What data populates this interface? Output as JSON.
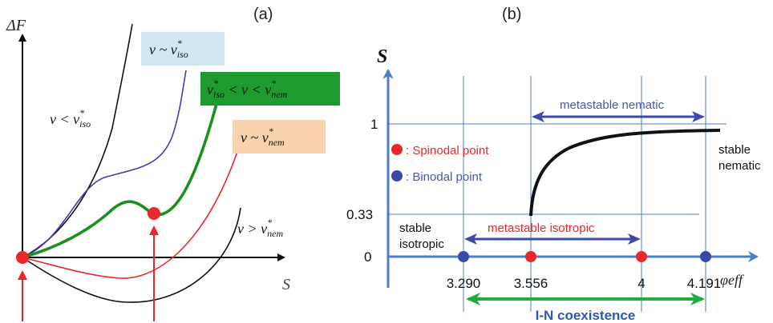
{
  "panel_a": {
    "label": "(a)",
    "y_axis_label": "ΔF",
    "x_axis_label": "S",
    "legend": {
      "v_lt_iso": "v < v*iso",
      "v_sim_iso": "v ~ v*iso",
      "v_between": "v*iso < v < v*nem",
      "v_sim_nem": "v ~ v*nem",
      "v_gt_nem": "v > v*nem"
    },
    "legend_colors": {
      "v_sim_iso_bg": "#cfe8f1",
      "v_between_bg": "#1f9a2e",
      "v_sim_nem_bg": "#f8d3ad"
    },
    "curve_colors": {
      "black": "#111111",
      "blue": "#3b3fb0",
      "green": "#1f8f22",
      "red": "#e8282b"
    }
  },
  "panel_b": {
    "label": "(b)",
    "y_axis_label": "S",
    "x_axis_label": "φeff",
    "y_ticks": [
      "1",
      "0.33",
      "0"
    ],
    "x_ticks": [
      "3.290",
      "3.556",
      "4",
      "4.191"
    ],
    "legend_spinodal": ": Spinodal point",
    "legend_binodal": ": Binodal point",
    "label_metastable_nematic": "metastable nematic",
    "label_metastable_isotropic": "metastable isotropic",
    "label_stable_isotropic_1": "stable",
    "label_stable_isotropic_2": "isotropic",
    "label_stable_nematic_1": "stable",
    "label_stable_nematic_2": "nematic",
    "label_coexistence": "I-N coexistence",
    "colors": {
      "axis": "#4a7fc4",
      "spinodal": "#e8282b",
      "binodal": "#3b4aa8",
      "arrow": "#3b4aa8",
      "coexistence": "#1fae3c",
      "red_text": "#e8282b",
      "blue_text": "#4a55b5"
    }
  }
}
